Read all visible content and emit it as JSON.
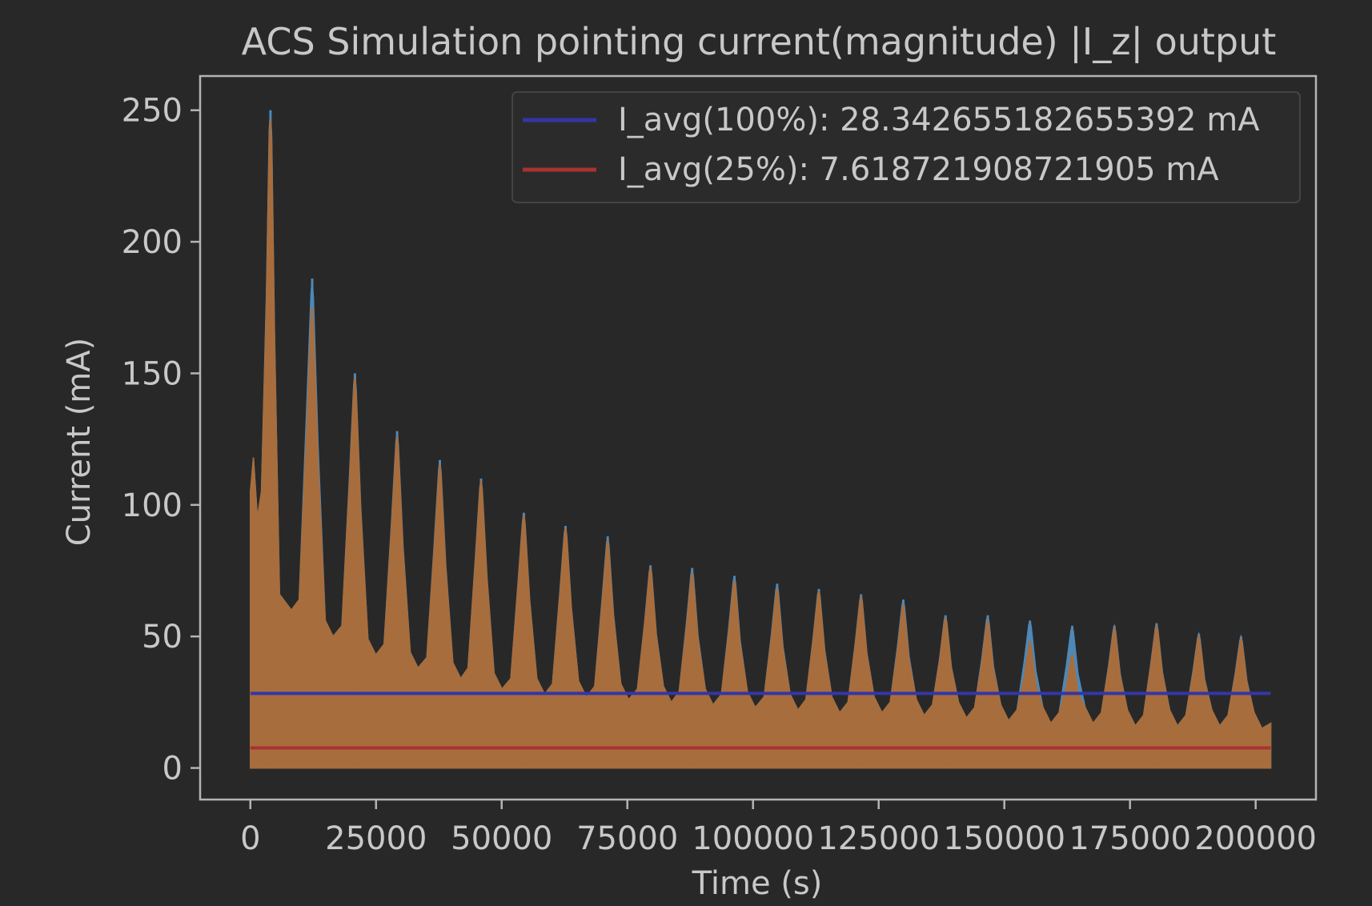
{
  "chart_data": {
    "type": "area",
    "title": "ACS Simulation pointing current(magnitude) |I_z| output",
    "xlabel": "Time (s)",
    "ylabel": "Current (mA)",
    "xlim": [
      -10000,
      212000
    ],
    "ylim": [
      -12,
      263
    ],
    "xticks": [
      0,
      25000,
      50000,
      75000,
      100000,
      125000,
      150000,
      175000,
      200000
    ],
    "xtick_labels": [
      "0",
      "25000",
      "50000",
      "75000",
      "100000",
      "125000",
      "150000",
      "175000",
      "200000"
    ],
    "yticks": [
      0,
      50,
      100,
      150,
      200,
      250
    ],
    "ytick_labels": [
      "0",
      "50",
      "100",
      "150",
      "200",
      "250"
    ],
    "grid": false,
    "legend_position": "top-right",
    "x_max": 203000,
    "peak_times": [
      4000,
      12300,
      20800,
      29200,
      37700,
      45900,
      54400,
      62700,
      71100,
      79600,
      87900,
      96300,
      104800,
      113100,
      121500,
      129900,
      138300,
      146700,
      155100,
      163500,
      171900,
      180300,
      188700,
      197100
    ],
    "peaks_blue": [
      250,
      186,
      150,
      128,
      117,
      110,
      97,
      92,
      88,
      77,
      76,
      73,
      70,
      68,
      66,
      64,
      58,
      58,
      56,
      54,
      54,
      55,
      51,
      50
    ],
    "peaks_orange": [
      246,
      175,
      148,
      126,
      115,
      109,
      96,
      91,
      86,
      76,
      74,
      71,
      68,
      67,
      65,
      62,
      57,
      56,
      48,
      43,
      53,
      54,
      50,
      49
    ],
    "troughs": [
      60,
      50,
      43,
      38,
      34,
      30,
      28,
      27,
      26,
      25,
      24,
      23,
      22,
      21,
      21,
      20,
      19,
      18,
      17,
      17,
      16,
      16,
      16,
      15
    ],
    "series": [
      {
        "name": "",
        "color": "#4d88b8"
      },
      {
        "name": "",
        "color": "#a86d3c"
      },
      {
        "name": "I_avg(100%): 28.342655182655392 mA",
        "value": 28.342655182655392,
        "color": "#3535a8"
      },
      {
        "name": "I_avg(25%): 7.618721908721905 mA",
        "value": 7.618721908721905,
        "color": "#a83232"
      }
    ]
  }
}
